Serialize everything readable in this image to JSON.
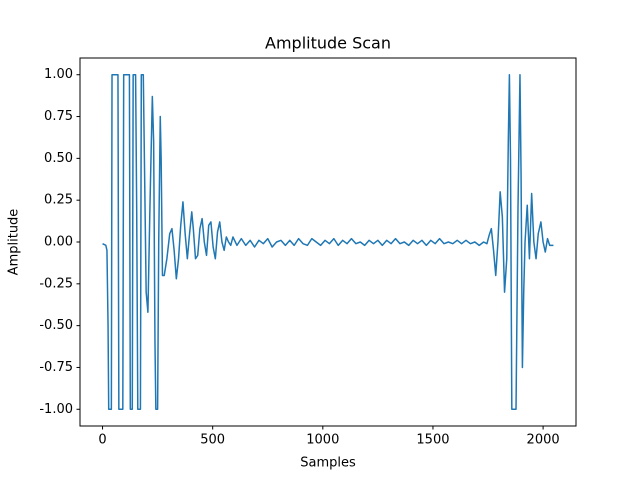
{
  "chart_data": {
    "type": "line",
    "title": "Amplitude Scan",
    "x_label": "Samples",
    "y_label": "Amplitude",
    "color": "#1f77b4",
    "x": [
      0,
      15,
      20,
      25,
      28,
      40,
      43,
      70,
      74,
      92,
      96,
      122,
      126,
      135,
      139,
      150,
      155,
      160,
      172,
      176,
      185,
      190,
      198,
      206,
      215,
      226,
      232,
      238,
      242,
      250,
      255,
      262,
      266,
      272,
      280,
      292,
      305,
      315,
      325,
      335,
      345,
      355,
      365,
      375,
      385,
      395,
      405,
      412,
      422,
      432,
      442,
      452,
      462,
      472,
      482,
      492,
      502,
      512,
      522,
      532,
      542,
      552,
      562,
      572,
      582,
      592,
      610,
      630,
      650,
      670,
      690,
      710,
      730,
      750,
      770,
      790,
      810,
      830,
      850,
      870,
      890,
      910,
      930,
      950,
      970,
      990,
      1010,
      1030,
      1050,
      1070,
      1090,
      1110,
      1130,
      1150,
      1170,
      1190,
      1210,
      1230,
      1250,
      1270,
      1290,
      1310,
      1330,
      1350,
      1370,
      1390,
      1410,
      1430,
      1450,
      1470,
      1490,
      1510,
      1530,
      1550,
      1570,
      1590,
      1610,
      1630,
      1650,
      1670,
      1690,
      1710,
      1730,
      1745,
      1755,
      1765,
      1775,
      1785,
      1795,
      1805,
      1815,
      1825,
      1835,
      1842,
      1847,
      1852,
      1858,
      1877,
      1886,
      1895,
      1900,
      1906,
      1912,
      1918,
      1928,
      1938,
      1948,
      1958,
      1968,
      1978,
      1990,
      2000,
      2010,
      2020,
      2030,
      2047
    ],
    "values": [
      -0.01,
      -0.02,
      -0.05,
      -0.5,
      -1,
      -1,
      1,
      1,
      -1,
      -1,
      1,
      1,
      -1,
      -1,
      1,
      1,
      0.2,
      -1,
      -1,
      1,
      1,
      0.5,
      -0.3,
      -0.42,
      0.2,
      0.87,
      0.6,
      -0.6,
      -1,
      -1,
      0,
      0.75,
      0.5,
      -0.2,
      -0.2,
      -0.1,
      0.05,
      0.08,
      -0.05,
      -0.22,
      -0.1,
      0.1,
      0.24,
      0.05,
      -0.1,
      0.05,
      0.18,
      0.08,
      -0.1,
      -0.08,
      0.08,
      0.14,
      0.0,
      -0.08,
      0.1,
      0.12,
      -0.03,
      -0.1,
      0.06,
      0.12,
      0.0,
      -0.05,
      0.03,
      0.0,
      -0.02,
      0.03,
      -0.02,
      0.02,
      -0.02,
      0.01,
      -0.03,
      0.01,
      -0.01,
      0.02,
      -0.03,
      0.0,
      0.01,
      -0.02,
      0.01,
      -0.02,
      0.02,
      -0.01,
      -0.02,
      0.02,
      0.0,
      -0.02,
      0.01,
      -0.01,
      0.02,
      -0.02,
      0.01,
      -0.01,
      0.02,
      -0.01,
      0.0,
      -0.02,
      0.01,
      -0.01,
      0.01,
      -0.02,
      0.01,
      -0.01,
      0.02,
      -0.01,
      0.0,
      -0.02,
      0.01,
      -0.01,
      0.01,
      -0.02,
      0.01,
      -0.01,
      0.02,
      -0.01,
      0.0,
      -0.01,
      0.01,
      -0.01,
      0.01,
      -0.01,
      0.0,
      -0.02,
      0.0,
      -0.01,
      0.04,
      0.08,
      -0.05,
      -0.2,
      0.0,
      0.3,
      0.15,
      -0.3,
      -0.1,
      0.6,
      1,
      0.5,
      -1,
      -1,
      0.2,
      1,
      0.4,
      -0.75,
      -0.3,
      0.0,
      0.22,
      -0.1,
      0.29,
      0.0,
      -0.1,
      0.05,
      0.12,
      0.0,
      -0.06,
      0.02,
      -0.02,
      -0.02
    ],
    "xlim": [
      -102.35,
      2149.35
    ],
    "ylim": [
      -1.1,
      1.1
    ],
    "xticks": [
      0,
      500,
      1000,
      1500,
      2000
    ],
    "yticks": [
      {
        "value": -1,
        "label": "-1.00"
      },
      {
        "value": -0.75,
        "label": "-0.75"
      },
      {
        "value": -0.5,
        "label": "-0.50"
      },
      {
        "value": -0.25,
        "label": "-0.25"
      },
      {
        "value": 0,
        "label": "0.00"
      },
      {
        "value": 0.25,
        "label": "0.25"
      },
      {
        "value": 0.5,
        "label": "0.50"
      },
      {
        "value": 0.75,
        "label": "0.75"
      },
      {
        "value": 1,
        "label": "1.00"
      }
    ]
  }
}
